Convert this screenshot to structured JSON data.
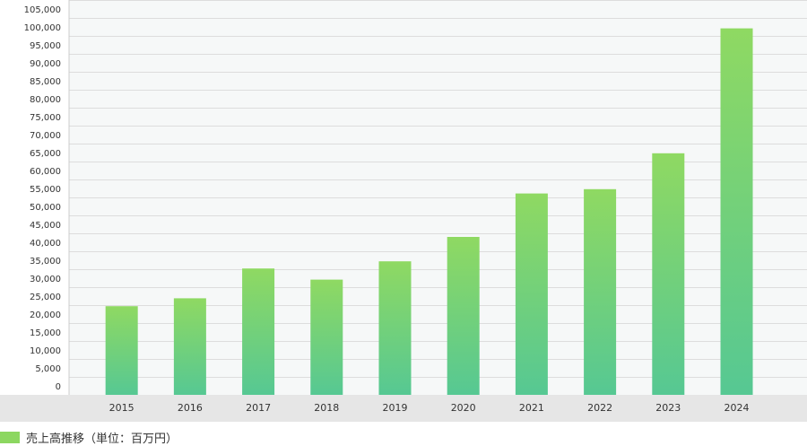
{
  "chart_data": {
    "type": "bar",
    "categories": [
      "2015",
      "2016",
      "2017",
      "2018",
      "2019",
      "2020",
      "2021",
      "2022",
      "2023",
      "2024"
    ],
    "series": [
      {
        "name": "売上高推移（単位：百万円）",
        "values": [
          24700,
          26900,
          35200,
          32100,
          37200,
          44000,
          56100,
          57300,
          67300,
          102100
        ]
      }
    ],
    "yticks": [
      "0",
      "5,000",
      "10,000",
      "15,000",
      "20,000",
      "25,000",
      "30,000",
      "35,000",
      "40,000",
      "45,000",
      "50,000",
      "55,000",
      "60,000",
      "65,000",
      "70,000",
      "75,000",
      "80,000",
      "85,000",
      "90,000",
      "95,000",
      "100,000",
      "105,000"
    ],
    "ylim": [
      0,
      110000
    ],
    "grid": true,
    "legend": "bottom-left",
    "colors": {
      "bar_top": "#8fd962",
      "bar_bottom": "#56c893",
      "plot_bg": "#f6f8f8",
      "grid": "#dddddd",
      "xaxis_band": "#e6e6e6",
      "legend_swatch": "#8cd760"
    }
  }
}
